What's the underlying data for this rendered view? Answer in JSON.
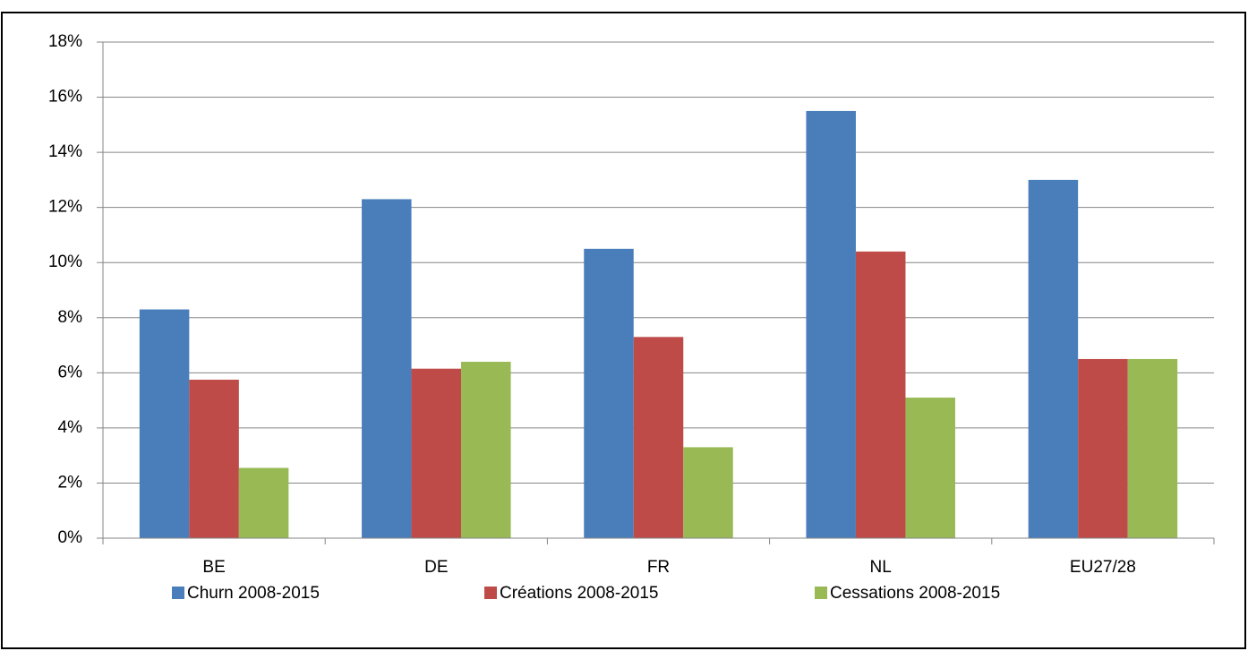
{
  "chart_data": {
    "type": "bar",
    "categories": [
      "BE",
      "DE",
      "FR",
      "NL",
      "EU27/28"
    ],
    "series": [
      {
        "name": "Churn 2008-2015",
        "color": "#4a7ebb",
        "values": [
          8.3,
          12.3,
          10.5,
          15.5,
          13.0
        ]
      },
      {
        "name": "Créations 2008-2015",
        "color": "#be4b48",
        "values": [
          5.75,
          6.15,
          7.3,
          10.4,
          6.5
        ]
      },
      {
        "name": "Cessations 2008-2015",
        "color": "#98b954",
        "values": [
          2.55,
          6.4,
          3.3,
          5.1,
          6.5
        ]
      }
    ],
    "ylim": [
      0,
      18
    ],
    "yticks": [
      {
        "value": 0,
        "label": "0%"
      },
      {
        "value": 2,
        "label": "2%"
      },
      {
        "value": 4,
        "label": "4%"
      },
      {
        "value": 6,
        "label": "6%"
      },
      {
        "value": 8,
        "label": "8%"
      },
      {
        "value": 10,
        "label": "10%"
      },
      {
        "value": 12,
        "label": "12%"
      },
      {
        "value": 14,
        "label": "14%"
      },
      {
        "value": 16,
        "label": "16%"
      },
      {
        "value": 18,
        "label": "18%"
      }
    ],
    "grid": true,
    "legend": "bottom"
  }
}
